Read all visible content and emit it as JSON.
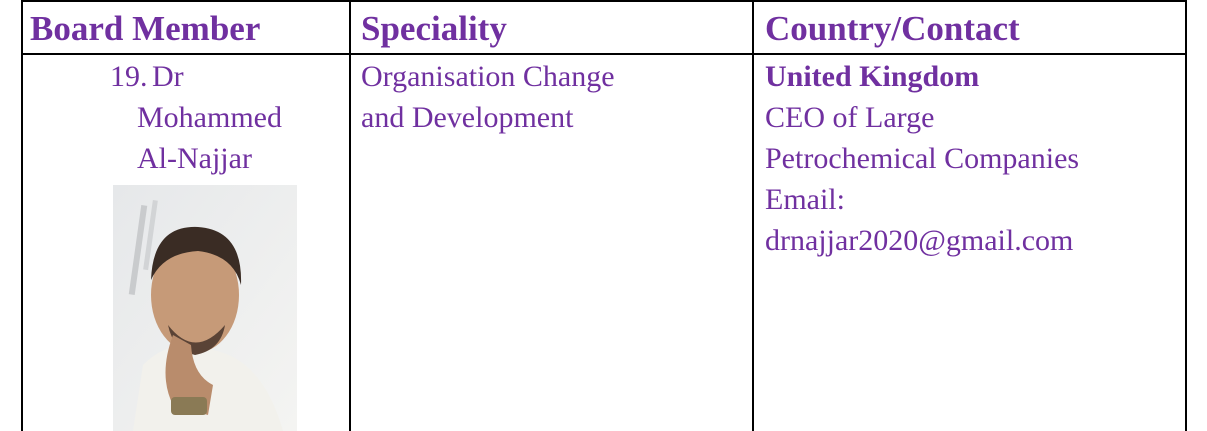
{
  "table": {
    "header": [
      "Board Member",
      "Speciality",
      "Country/Contact"
    ],
    "rows": [
      [
        {
          "list_number": "19.",
          "name_lines": [
            "Dr",
            "Mohammed",
            "Al-Najjar"
          ]
        },
        {
          "lines": [
            "Organisation Change",
            "and Development"
          ]
        },
        {
          "country": "United Kingdom",
          "lines": [
            "CEO of Large",
            "Petrochemical Companies",
            "Email:",
            "drnajjar2020@gmail.com"
          ]
        }
      ]
    ]
  }
}
